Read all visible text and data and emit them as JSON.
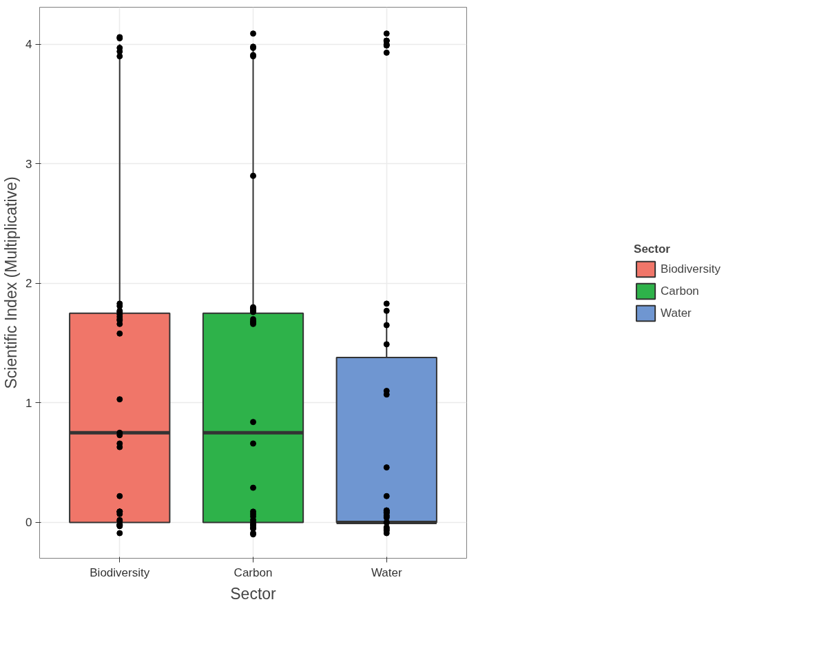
{
  "chart_data": {
    "type": "box",
    "xlabel": "Sector",
    "ylabel": "Scientific Index (Multiplicative)",
    "legend_title": "Sector",
    "legend": "right",
    "grid": true,
    "categories": [
      "Biodiversity",
      "Carbon",
      "Water"
    ],
    "ylim": [
      -0.3,
      4.31
    ],
    "yticks": [
      0,
      1,
      2,
      3,
      4
    ],
    "series": [
      {
        "name": "Biodiversity",
        "color": "#f07669",
        "boxes": [
          {
            "q1": 0,
            "median": 0.75,
            "q3": 1.75,
            "high": 4
          },
          null,
          null
        ]
      },
      {
        "name": "Carbon",
        "color": "#2eb24a",
        "boxes": [
          null,
          {
            "q1": 0,
            "median": 0.75,
            "q3": 1.75,
            "high": 4
          },
          null
        ]
      },
      {
        "name": "Water",
        "color": "#6f96d1",
        "boxes": [
          null,
          null,
          {
            "q1": 0,
            "median": 0,
            "q3": 1.38,
            "high": 1.75
          }
        ]
      },
      {
        "type": "scatter",
        "color": "#000000",
        "marker": "circle",
        "x": [
          "Biodiversity",
          "Biodiversity",
          "Biodiversity",
          "Biodiversity",
          "Biodiversity",
          "Biodiversity",
          "Biodiversity",
          "Biodiversity",
          "Biodiversity",
          "Biodiversity",
          "Biodiversity",
          "Biodiversity",
          "Biodiversity",
          "Biodiversity",
          "Biodiversity",
          "Biodiversity",
          "Biodiversity",
          "Biodiversity",
          "Biodiversity",
          "Biodiversity",
          "Biodiversity",
          "Biodiversity",
          "Biodiversity",
          "Biodiversity",
          "Biodiversity",
          "Biodiversity",
          "Biodiversity",
          "Biodiversity",
          "Biodiversity",
          "Biodiversity",
          "Biodiversity",
          "Biodiversity",
          "Biodiversity",
          "Carbon",
          "Carbon",
          "Carbon",
          "Carbon",
          "Carbon",
          "Carbon",
          "Carbon",
          "Carbon",
          "Carbon",
          "Carbon",
          "Carbon",
          "Carbon",
          "Carbon",
          "Carbon",
          "Carbon",
          "Carbon",
          "Carbon",
          "Carbon",
          "Carbon",
          "Carbon",
          "Carbon",
          "Carbon",
          "Carbon",
          "Carbon",
          "Carbon",
          "Carbon",
          "Carbon",
          "Carbon",
          "Carbon",
          "Carbon",
          "Carbon",
          "Carbon",
          "Carbon",
          "Water",
          "Water",
          "Water",
          "Water",
          "Water",
          "Water",
          "Water",
          "Water",
          "Water",
          "Water",
          "Water",
          "Water",
          "Water",
          "Water",
          "Water",
          "Water",
          "Water",
          "Water",
          "Water",
          "Water",
          "Water",
          "Water",
          "Water",
          "Water",
          "Water",
          "Water",
          "Water",
          "Water",
          "Water",
          "Water",
          "Water"
        ],
        "values": [
          4.06,
          4.05,
          3.97,
          3.94,
          3.9,
          1.83,
          1.81,
          1.77,
          1.76,
          1.74,
          1.72,
          1.7,
          1.69,
          1.66,
          1.58,
          1.03,
          0.75,
          0.73,
          0.66,
          0.63,
          0.22,
          0.09,
          0.09,
          0.09,
          -0.03,
          -0.02,
          0.07,
          0.01,
          -0.02,
          -0.02,
          0.02,
          -0.09,
          -0.03,
          4.09,
          3.97,
          3.91,
          3.98,
          3.9,
          2.9,
          1.77,
          1.76,
          1.8,
          1.79,
          1.77,
          1.79,
          1.68,
          1.67,
          1.68,
          1.66,
          1.7,
          0.84,
          0.66,
          0.29,
          0.09,
          0.07,
          0.05,
          0.0,
          -0.04,
          -0.02,
          -0.1,
          -0.02,
          -0.05,
          -0.02,
          -0.09,
          0.02,
          -0.05,
          4.03,
          4.03,
          4.09,
          4.0,
          3.99,
          3.99,
          3.93,
          4.03,
          1.77,
          1.83,
          1.65,
          1.49,
          1.07,
          1.1,
          0.46,
          0.22,
          0.1,
          0.09,
          0.08,
          0.04,
          0.08,
          0.05,
          0.1,
          0.06,
          -0.04,
          -0.06,
          -0.05,
          -0.09,
          -0.07,
          0.0,
          0.0
        ]
      }
    ]
  }
}
